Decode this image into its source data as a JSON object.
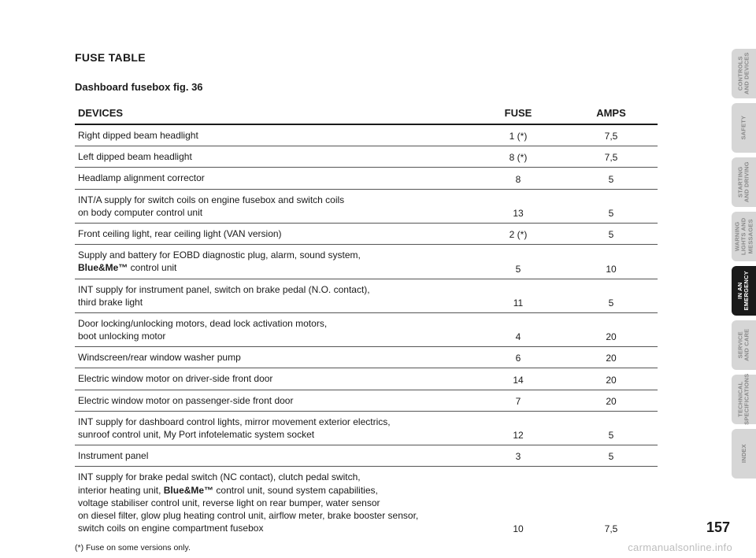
{
  "page": {
    "title": "FUSE TABLE",
    "subtitle": "Dashboard fusebox fig. 36",
    "footnote": "(*)  Fuse on some versions only.",
    "number": "157",
    "watermark": "carmanualsonline.info"
  },
  "table": {
    "headers": {
      "devices": "DEVICES",
      "fuse": "FUSE",
      "amps": "AMPS"
    },
    "rows": [
      {
        "device_lines": [
          "Right dipped beam headlight"
        ],
        "fuse": "1 (*)",
        "amps": "7,5"
      },
      {
        "device_lines": [
          "Left dipped beam headlight"
        ],
        "fuse": "8 (*)",
        "amps": "7,5"
      },
      {
        "device_lines": [
          "Headlamp alignment corrector"
        ],
        "fuse": "8",
        "amps": "5"
      },
      {
        "device_lines": [
          "INT/A supply for switch coils on engine fusebox and switch coils",
          "on body computer control unit"
        ],
        "fuse": "13",
        "amps": "5"
      },
      {
        "device_lines": [
          "Front ceiling light, rear ceiling light (VAN version)"
        ],
        "fuse": "2 (*)",
        "amps": "5"
      },
      {
        "device_lines": [
          "Supply and battery for EOBD diagnostic plug, alarm, sound system,",
          "<b>Blue&Me™</b> control unit"
        ],
        "fuse": "5",
        "amps": "10"
      },
      {
        "device_lines": [
          "INT supply for instrument panel, switch on brake pedal (N.O. contact),",
          "third brake light"
        ],
        "fuse": "11",
        "amps": "5"
      },
      {
        "device_lines": [
          "Door locking/unlocking motors, dead lock activation motors,",
          "boot unlocking motor"
        ],
        "fuse": "4",
        "amps": "20"
      },
      {
        "device_lines": [
          "Windscreen/rear window washer pump"
        ],
        "fuse": "6",
        "amps": "20"
      },
      {
        "device_lines": [
          "Electric window motor on driver-side front door"
        ],
        "fuse": "14",
        "amps": "20"
      },
      {
        "device_lines": [
          "Electric window motor on passenger-side front door"
        ],
        "fuse": "7",
        "amps": "20"
      },
      {
        "device_lines": [
          "INT supply for dashboard control lights, mirror movement exterior electrics,",
          "sunroof control unit, My Port infotelematic system socket"
        ],
        "fuse": "12",
        "amps": "5"
      },
      {
        "device_lines": [
          "Instrument panel"
        ],
        "fuse": "3",
        "amps": "5"
      },
      {
        "device_lines": [
          "INT supply for brake pedal switch (NC contact), clutch pedal switch,",
          "interior heating unit, <b>Blue&Me™</b> control unit, sound system capabilities,",
          "voltage stabiliser control unit, reverse light on rear bumper, water sensor",
          "on diesel filter, glow plug heating control unit, airflow meter, brake booster sensor,",
          "switch coils on engine compartment fusebox"
        ],
        "fuse": "10",
        "amps": "7,5"
      }
    ]
  },
  "tabs": [
    {
      "label": "CONTROLS\nAND DEVICES",
      "active": false
    },
    {
      "label": "SAFETY",
      "active": false
    },
    {
      "label": "STARTING\nAND DRIVING",
      "active": false
    },
    {
      "label": "WARNING\nLIGHTS AND\nMESSAGES",
      "active": false
    },
    {
      "label": "IN AN\nEMERGENCY",
      "active": true
    },
    {
      "label": "SERVICE\nAND CARE",
      "active": false
    },
    {
      "label": "TECHNICAL\nSPECIFICATIONS",
      "active": false
    },
    {
      "label": "INDEX",
      "active": false
    }
  ],
  "colors": {
    "text": "#1a1a1a",
    "rule_heavy": "#1a1a1a",
    "rule_light": "#555555",
    "tab_inactive_bg": "#d6d6d6",
    "tab_inactive_text": "#8a8a8a",
    "tab_active_bg": "#1a1a1a",
    "tab_active_text": "#ffffff",
    "watermark": "#bdbdbd",
    "background": "#ffffff"
  },
  "typography": {
    "base_font": "Helvetica Neue, Helvetica, Arial, sans-serif",
    "title_size_pt": 14,
    "subtitle_size_pt": 13,
    "header_size_pt": 13,
    "body_size_pt": 12,
    "footnote_size_pt": 10.5,
    "page_num_size_pt": 18,
    "tab_label_size_pt": 7.5
  }
}
